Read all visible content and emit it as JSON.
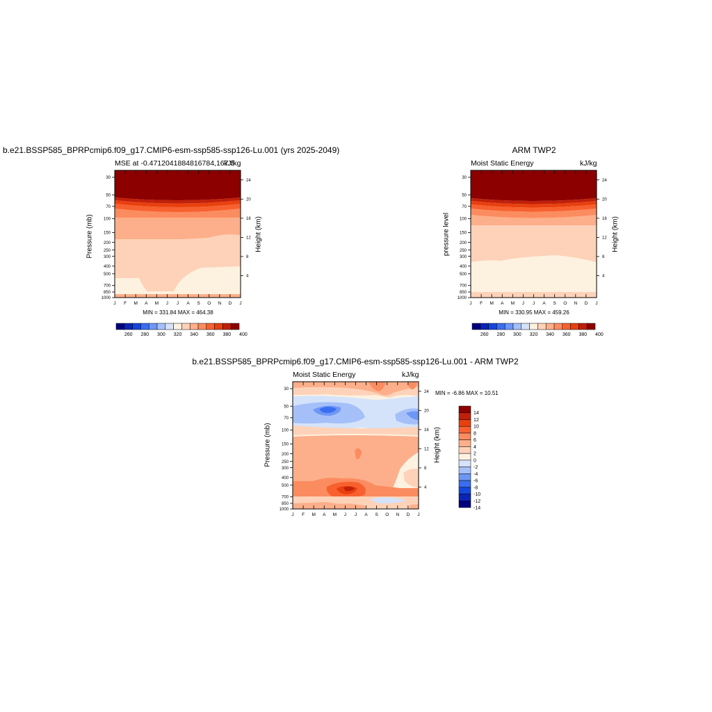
{
  "chart_data": [
    {
      "type": "heatmap",
      "title": "b.e21.BSSP585_BPRPcmip6.f09_g17.CMIP6-esm-ssp585-ssp126-Lu.001 (yrs 2025-2049)",
      "subtitle_left": "MSE at -0.4712041884816784,167.5",
      "units": "kJ/kg",
      "ylabel": "Pressure (mb)",
      "ylabel_right": "Height (km)",
      "stats": "MIN = 331.84 MAX = 464.38",
      "x_ticks": [
        "J",
        "F",
        "M",
        "A",
        "M",
        "J",
        "J",
        "A",
        "S",
        "O",
        "N",
        "D",
        "J"
      ],
      "y_ticks": [
        "30",
        "50",
        "70",
        "100",
        "150",
        "200",
        "250",
        "300",
        "400",
        "500",
        "700",
        "850",
        "1000"
      ],
      "y_ticks_right": [
        "24",
        "20",
        "16",
        "12",
        "8",
        "4"
      ],
      "colorbar_labels": [
        "260",
        "280",
        "300",
        "320",
        "340",
        "360",
        "380",
        "400"
      ],
      "colorbar_colors": [
        "#00007f",
        "#0a24b8",
        "#1446dc",
        "#3a6ef0",
        "#6e97f5",
        "#a5c0f8",
        "#d4e3fa",
        "#fdf1e0",
        "#fdd2b8",
        "#fcaf8a",
        "#fb8c60",
        "#f8612f",
        "#e8400f",
        "#c0200a",
        "#8c0000"
      ]
    },
    {
      "type": "heatmap",
      "title": "ARM TWP2",
      "subtitle_left": "Moist Static Energy",
      "units": "kJ/kg",
      "ylabel": "pressure level",
      "ylabel_right": "Height (km)",
      "stats": "MIN = 330.95 MAX = 459.26",
      "x_ticks": [
        "J",
        "F",
        "M",
        "A",
        "M",
        "J",
        "J",
        "A",
        "S",
        "O",
        "N",
        "D",
        "J"
      ],
      "y_ticks": [
        "30",
        "50",
        "70",
        "100",
        "150",
        "200",
        "250",
        "300",
        "400",
        "500",
        "700",
        "850",
        "1000"
      ],
      "y_ticks_right": [
        "24",
        "20",
        "16",
        "12",
        "8",
        "4"
      ],
      "colorbar_labels": [
        "260",
        "280",
        "300",
        "320",
        "340",
        "360",
        "380",
        "400"
      ]
    },
    {
      "type": "heatmap",
      "title": "b.e21.BSSP585_BPRPcmip6.f09_g17.CMIP6-esm-ssp585-ssp126-Lu.001 - ARM TWP2",
      "subtitle_left": "Moist Static Energy",
      "units": "kJ/kg",
      "ylabel": "Pressure (mb)",
      "ylabel_right": "Height (km)",
      "stats": "MIN =  -6.86 MAX =  10.51",
      "x_ticks": [
        "J",
        "F",
        "M",
        "A",
        "M",
        "J",
        "J",
        "A",
        "S",
        "O",
        "N",
        "D",
        "J"
      ],
      "y_ticks": [
        "30",
        "50",
        "70",
        "100",
        "150",
        "200",
        "250",
        "300",
        "400",
        "500",
        "700",
        "850",
        "1000"
      ],
      "y_ticks_right": [
        "24",
        "20",
        "16",
        "12",
        "8",
        "4"
      ],
      "colorbar_labels": [
        "14",
        "12",
        "10",
        "8",
        "6",
        "4",
        "2",
        "0",
        "-2",
        "-4",
        "-6",
        "-8",
        "-10",
        "-12",
        "-14"
      ],
      "colorbar_colors": [
        "#8c0000",
        "#c0200a",
        "#e8400f",
        "#f8612f",
        "#fb8c60",
        "#fcaf8a",
        "#fdd2b8",
        "#fdf1e0",
        "#d4e3fa",
        "#a5c0f8",
        "#6e97f5",
        "#3a6ef0",
        "#1446dc",
        "#0a24b8",
        "#00007f"
      ]
    }
  ]
}
